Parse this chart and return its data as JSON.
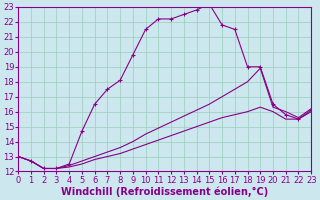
{
  "background_color": "#cce8ee",
  "grid_color": "#99ccbb",
  "line_color": "#880088",
  "xlabel": "Windchill (Refroidissement éolien,°C)",
  "xlabel_fontsize": 7,
  "tick_fontsize": 6,
  "xlim": [
    0,
    23
  ],
  "ylim": [
    12,
    23
  ],
  "xticks": [
    0,
    1,
    2,
    3,
    4,
    5,
    6,
    7,
    8,
    9,
    10,
    11,
    12,
    13,
    14,
    15,
    16,
    17,
    18,
    19,
    20,
    21,
    22,
    23
  ],
  "yticks": [
    12,
    13,
    14,
    15,
    16,
    17,
    18,
    19,
    20,
    21,
    22,
    23
  ],
  "curve1_x": [
    0,
    1,
    2,
    3,
    4,
    5,
    6,
    7,
    8,
    9,
    10,
    11,
    12,
    13,
    14,
    15,
    16,
    17,
    18,
    19,
    20,
    21,
    22,
    23
  ],
  "curve1_y": [
    13.0,
    12.7,
    12.2,
    12.2,
    12.5,
    14.7,
    16.5,
    17.5,
    18.1,
    19.8,
    21.5,
    22.2,
    22.2,
    22.5,
    22.8,
    23.2,
    21.8,
    21.5,
    19.0,
    19.0,
    16.5,
    15.8,
    15.5,
    16.1
  ],
  "curve2_x": [
    0,
    1,
    2,
    3,
    4,
    5,
    6,
    7,
    8,
    9,
    10,
    11,
    12,
    13,
    14,
    15,
    16,
    17,
    18,
    19,
    20,
    21,
    22,
    23
  ],
  "curve2_y": [
    13.0,
    12.7,
    12.2,
    12.2,
    12.4,
    12.7,
    13.0,
    13.3,
    13.6,
    14.0,
    14.5,
    14.9,
    15.3,
    15.7,
    16.1,
    16.5,
    17.0,
    17.5,
    18.0,
    18.9,
    16.3,
    16.0,
    15.6,
    16.2
  ],
  "curve3_x": [
    0,
    1,
    2,
    3,
    4,
    5,
    6,
    7,
    8,
    9,
    10,
    11,
    12,
    13,
    14,
    15,
    16,
    17,
    18,
    19,
    20,
    21,
    22,
    23
  ],
  "curve3_y": [
    13.0,
    12.7,
    12.2,
    12.2,
    12.3,
    12.5,
    12.8,
    13.0,
    13.2,
    13.5,
    13.8,
    14.1,
    14.4,
    14.7,
    15.0,
    15.3,
    15.6,
    15.8,
    16.0,
    16.3,
    16.0,
    15.5,
    15.5,
    16.0
  ]
}
